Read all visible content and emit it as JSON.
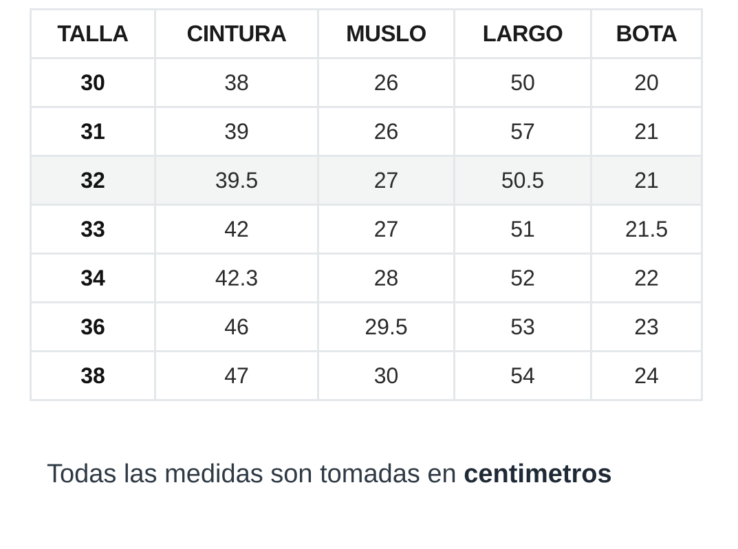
{
  "table": {
    "headers": [
      "TALLA",
      "CINTURA",
      "MUSLO",
      "LARGO",
      "BOTA"
    ],
    "rows": [
      [
        "30",
        "38",
        "26",
        "50",
        "20"
      ],
      [
        "31",
        "39",
        "26",
        "57",
        "21"
      ],
      [
        "32",
        "39.5",
        "27",
        "50.5",
        "21"
      ],
      [
        "33",
        "42",
        "27",
        "51",
        "21.5"
      ],
      [
        "34",
        "42.3",
        "28",
        "52",
        "22"
      ],
      [
        "36",
        "46",
        "29.5",
        "53",
        "23"
      ],
      [
        "38",
        "47",
        "30",
        "54",
        "24"
      ]
    ],
    "highlighted_row_index": 2,
    "border_color": "#e4e8ea",
    "highlight_color": "#f3f4f4"
  },
  "footnote": {
    "prefix": "Todas las medidas son tomadas en",
    "unit": "centimetros"
  }
}
